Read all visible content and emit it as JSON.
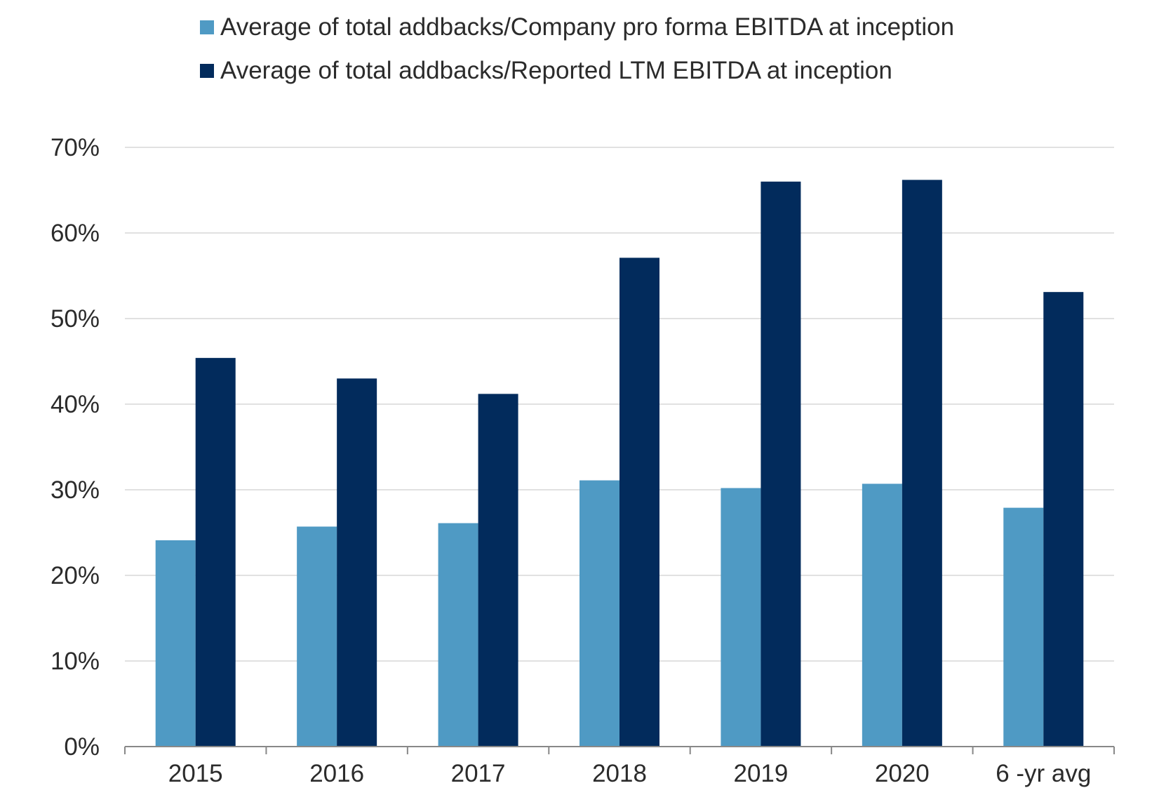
{
  "chart_data": {
    "type": "bar",
    "title": "",
    "xlabel": "",
    "ylabel": "",
    "categories": [
      "2015",
      "2016",
      "2017",
      "2018",
      "2019",
      "2020",
      "6 -yr avg"
    ],
    "series": [
      {
        "name": "Average of total addbacks/Company pro forma EBITDA at inception",
        "color": "#4f9ac4",
        "values": [
          24.1,
          25.7,
          26.1,
          31.1,
          30.2,
          30.7,
          27.9
        ]
      },
      {
        "name": "Average of total addbacks/Reported LTM EBITDA at inception",
        "color": "#022b5c",
        "values": [
          45.4,
          43.0,
          41.2,
          57.1,
          66.0,
          66.2,
          53.1
        ]
      }
    ],
    "ylim": [
      0,
      70
    ],
    "yticks": [
      "0%",
      "10%",
      "20%",
      "30%",
      "40%",
      "50%",
      "60%",
      "70%"
    ],
    "grid": true,
    "legend_position": "top-center"
  },
  "colors": {
    "grid": "#d7d7d7",
    "axis": "#888888",
    "text": "#2b2b2b"
  }
}
